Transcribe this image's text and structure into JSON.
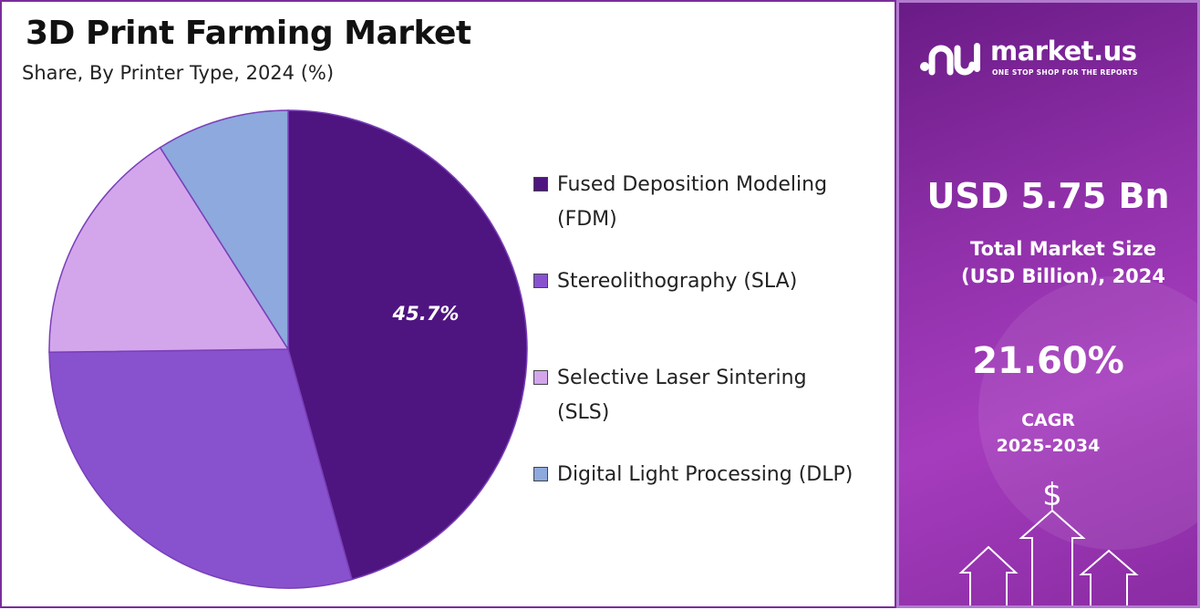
{
  "title": "3D Print Farming Market",
  "subtitle": "Share, By Printer Type, 2024 (%)",
  "chart_data": {
    "type": "pie",
    "title": "3D Print Farming Market",
    "subtitle": "Share, By Printer Type, 2024 (%)",
    "categories": [
      "Fused Deposition Modeling (FDM)",
      "Stereolithography (SLA)",
      "Selective Laser Sintering (SLS)",
      "Digital Light Processing (DLP)"
    ],
    "values": [
      45.7,
      29.1,
      16.2,
      9.0
    ],
    "colors": [
      "#4e1580",
      "#8852cf",
      "#d3a6ec",
      "#8da9dd"
    ],
    "data_labels": [
      "45.7%",
      "",
      "",
      ""
    ],
    "legend_position": "right"
  },
  "legend": [
    {
      "label_line1": "Fused Deposition Modeling",
      "label_line2": "(FDM)",
      "color": "#4e1580"
    },
    {
      "label_line1": "Stereolithography (SLA)",
      "label_line2": "",
      "color": "#8852cf"
    },
    {
      "label_line1": "Selective Laser Sintering",
      "label_line2": "(SLS)",
      "color": "#d3a6ec"
    },
    {
      "label_line1": "Digital Light Processing (DLP)",
      "label_line2": "",
      "color": "#8da9dd"
    }
  ],
  "side_panel": {
    "brand_name": "market.us",
    "brand_tagline": "ONE STOP SHOP FOR THE REPORTS",
    "market_size_value": "USD 5.75 Bn",
    "market_size_label_line1": "Total Market Size",
    "market_size_label_line2": "(USD Billion), 2024",
    "cagr_value": "21.60%",
    "cagr_label_line1": "CAGR",
    "cagr_label_line2": "2025-2034",
    "icons": [
      "market-us-logo-icon",
      "dollar-sign-icon",
      "up-arrow-icon"
    ],
    "accent_color": "#8e2fa8"
  }
}
